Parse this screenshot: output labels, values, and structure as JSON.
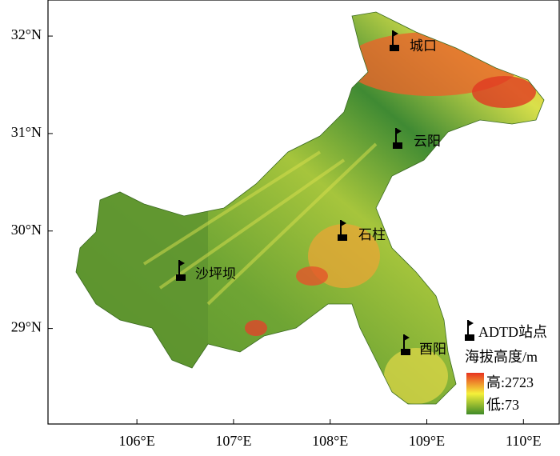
{
  "map": {
    "xlim": [
      105.08,
      110.37
    ],
    "xticks": [
      {
        "value": 106,
        "label": "106°E"
      },
      {
        "value": 107,
        "label": "107°E"
      },
      {
        "value": 108,
        "label": "108°E"
      },
      {
        "value": 109,
        "label": "109°E"
      },
      {
        "value": 110,
        "label": "110°E"
      }
    ],
    "ylim": [
      28.02,
      32.37
    ],
    "yticks": [
      {
        "value": 29,
        "label": "29°N"
      },
      {
        "value": 30,
        "label": "30°N"
      },
      {
        "value": 31,
        "label": "31°N"
      },
      {
        "value": 32,
        "label": "32°N"
      }
    ],
    "stations": [
      "城口",
      "云阳",
      "石柱",
      "沙坪坝",
      "酉阳"
    ],
    "legend": {
      "station": "ADTD站点",
      "elevation_title": "海拔高度/m",
      "high": "高:2723",
      "low": "低:73"
    }
  }
}
